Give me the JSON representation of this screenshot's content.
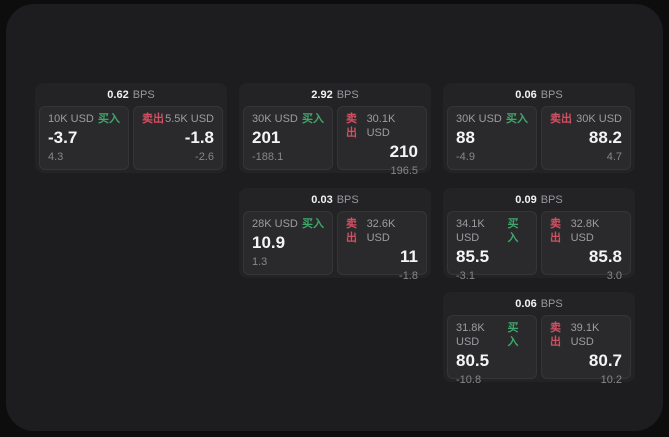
{
  "labels": {
    "buy": "买入",
    "sell": "卖出",
    "bps_unit": "BPS"
  },
  "colors": {
    "page": "#0d0d0e",
    "panel": "#1d1d1f",
    "card": "#232325",
    "tile": "#2a2a2c",
    "buy": "#3fa76a",
    "sell": "#d15062"
  },
  "cards": [
    {
      "bps": "0.62",
      "buy": {
        "amount": "10K USD",
        "price": "-3.7",
        "delta": "4.3"
      },
      "sell": {
        "amount": "5.5K USD",
        "price": "-1.8",
        "delta": "-2.6"
      }
    },
    {
      "bps": "2.92",
      "buy": {
        "amount": "30K USD",
        "price": "201",
        "delta": "-188.1"
      },
      "sell": {
        "amount": "30.1K USD",
        "price": "210",
        "delta": "196.5"
      }
    },
    {
      "bps": "0.06",
      "buy": {
        "amount": "30K USD",
        "price": "88",
        "delta": "-4.9"
      },
      "sell": {
        "amount": "30K USD",
        "price": "88.2",
        "delta": "4.7"
      }
    },
    {
      "bps": "0.03",
      "buy": {
        "amount": "28K USD",
        "price": "10.9",
        "delta": "1.3"
      },
      "sell": {
        "amount": "32.6K USD",
        "price": "11",
        "delta": "-1.8"
      }
    },
    {
      "bps": "0.09",
      "buy": {
        "amount": "34.1K USD",
        "price": "85.5",
        "delta": "-3.1"
      },
      "sell": {
        "amount": "32.8K USD",
        "price": "85.8",
        "delta": "3.0"
      }
    },
    {
      "bps": "0.06",
      "buy": {
        "amount": "31.8K USD",
        "price": "80.5",
        "delta": "-10.8"
      },
      "sell": {
        "amount": "39.1K USD",
        "price": "80.7",
        "delta": "10.2"
      }
    }
  ]
}
